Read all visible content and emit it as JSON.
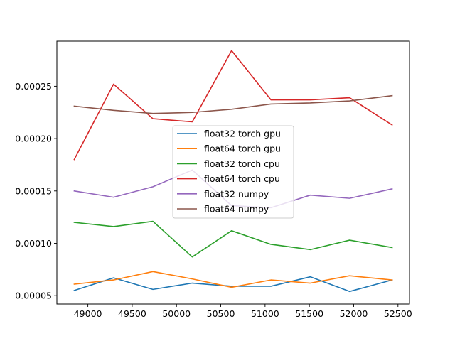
{
  "chart_data": {
    "type": "line",
    "title": "",
    "xlabel": "",
    "ylabel": "",
    "x": [
      48846,
      49290,
      49734,
      50178,
      50622,
      51066,
      51510,
      51954,
      52434
    ],
    "xlim": [
      48650,
      52630
    ],
    "ylim": [
      4.2e-05,
      0.000293
    ],
    "xticks": [
      49000,
      49500,
      50000,
      50500,
      51000,
      51500,
      52000,
      52500
    ],
    "xtick_labels": [
      "49000",
      "49500",
      "50000",
      "50500",
      "51000",
      "51500",
      "52000",
      "52500"
    ],
    "yticks": [
      5e-05,
      0.0001,
      0.00015,
      0.0002,
      0.00025
    ],
    "ytick_labels": [
      "0.00005",
      "0.00010",
      "0.00015",
      "0.00020",
      "0.00025"
    ],
    "grid": false,
    "legend_position": "center",
    "series": [
      {
        "name": "float32 torch gpu",
        "color": "#1f77b4",
        "values": [
          5.5e-05,
          6.7e-05,
          5.6e-05,
          6.2e-05,
          5.9e-05,
          5.9e-05,
          6.8e-05,
          5.4e-05,
          6.5e-05
        ]
      },
      {
        "name": "float64 torch gpu",
        "color": "#ff7f0e",
        "values": [
          6.1e-05,
          6.5e-05,
          7.3e-05,
          6.6e-05,
          5.8e-05,
          6.5e-05,
          6.2e-05,
          6.9e-05,
          6.5e-05
        ]
      },
      {
        "name": "float32 torch cpu",
        "color": "#2ca02c",
        "values": [
          0.00012,
          0.000116,
          0.000121,
          8.7e-05,
          0.000112,
          9.9e-05,
          9.4e-05,
          0.000103,
          9.6e-05
        ]
      },
      {
        "name": "float64 torch cpu",
        "color": "#d62728",
        "values": [
          0.00018,
          0.000252,
          0.000219,
          0.000216,
          0.000284,
          0.000237,
          0.000237,
          0.000239,
          0.000213
        ]
      },
      {
        "name": "float32 numpy",
        "color": "#9467bd",
        "values": [
          0.00015,
          0.000144,
          0.000154,
          0.00017,
          0.000136,
          0.000134,
          0.000146,
          0.000143,
          0.000152
        ]
      },
      {
        "name": "float64 numpy",
        "color": "#8c564b",
        "values": [
          0.000231,
          0.000227,
          0.000224,
          0.000225,
          0.000228,
          0.000233,
          0.000234,
          0.000236,
          0.000241
        ]
      }
    ]
  }
}
